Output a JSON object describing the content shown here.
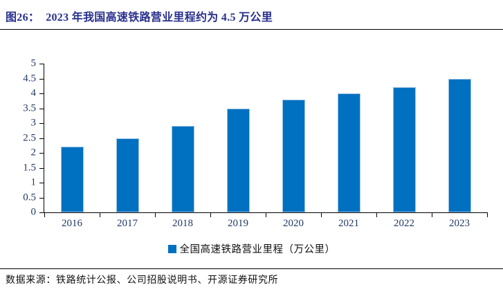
{
  "figure": {
    "label": "图26：",
    "title": "2023 年我国高速铁路营业里程约为 4.5 万公里"
  },
  "chart_data": {
    "type": "bar",
    "categories": [
      "2016",
      "2017",
      "2018",
      "2019",
      "2020",
      "2021",
      "2022",
      "2023"
    ],
    "values": [
      2.2,
      2.5,
      2.9,
      3.5,
      3.8,
      4.0,
      4.2,
      4.5
    ],
    "title": "",
    "xlabel": "",
    "ylabel": "",
    "ylim": [
      0,
      5
    ],
    "ytick_values": [
      0,
      0.5,
      1,
      1.5,
      2,
      2.5,
      3,
      3.5,
      4,
      4.5,
      5
    ],
    "ytick_labels": [
      "0",
      "0.5",
      "1",
      "1.5",
      "2",
      "2.5",
      "3",
      "3.5",
      "4",
      "4.5",
      "5"
    ],
    "grid": false,
    "legend": [
      "全国高速铁路营业里程（万公里）"
    ],
    "legend_position": "bottom",
    "bar_color": "#0070C0",
    "bar_border_color": "#9DC3E6"
  },
  "source": {
    "text": "数据来源：铁路统计公报、公司招股说明书、开源证券研究所"
  },
  "colors": {
    "title_text": "#272F8C",
    "axis_label": "#203864",
    "accent": "#0070C0",
    "rule": "#000000"
  }
}
